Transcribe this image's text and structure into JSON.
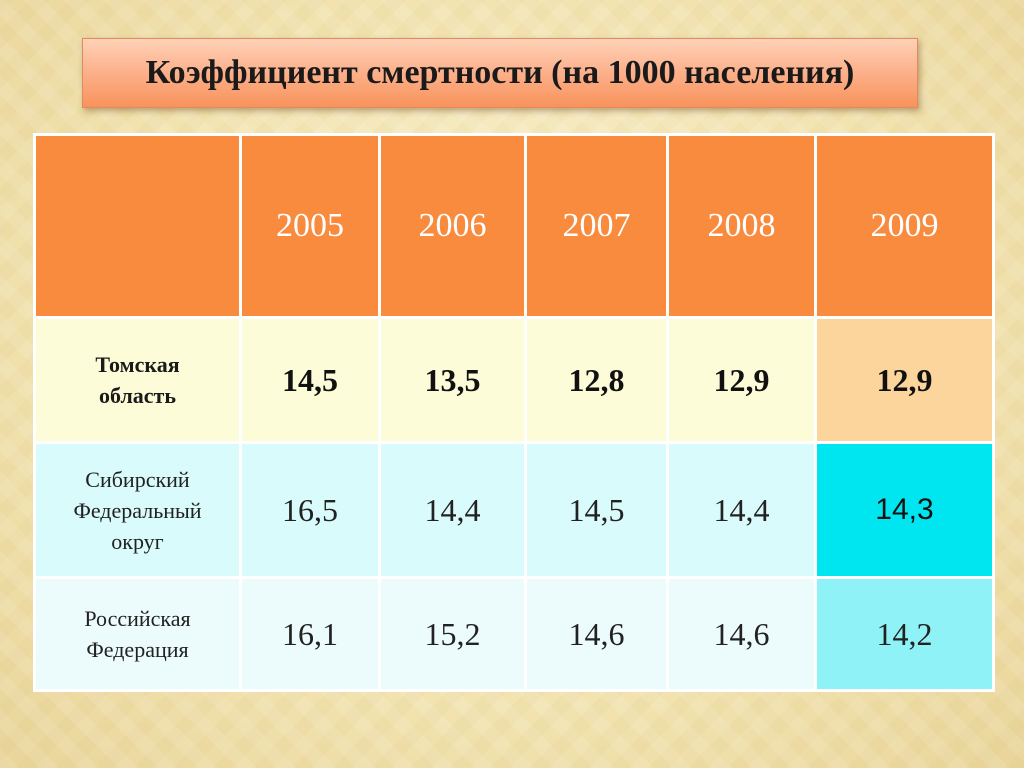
{
  "title": "Коэффициент смертности (на 1000 населения)",
  "table": {
    "years": [
      "2005",
      "2006",
      "2007",
      "2008",
      "2009"
    ],
    "rows": [
      {
        "label": "Томская область",
        "values": [
          "14,5",
          "13,5",
          "12,8",
          "12,9",
          "12,9"
        ]
      },
      {
        "label": "Сибирский Федеральный округ",
        "values": [
          "16,5",
          "14,4",
          "14,5",
          "14,4",
          "14,3"
        ]
      },
      {
        "label": "Российская Федерация",
        "values": [
          "16,1",
          "15,2",
          "14,6",
          "14,6",
          "14,2"
        ]
      }
    ]
  },
  "colors": {
    "header": "#f98b3e",
    "tomsk_row": "#fdfcd9",
    "tomsk_highlight": "#fbd59c",
    "sibir_row": "#d9fbfb",
    "sibir_highlight": "#00e6f0",
    "russia_row": "#ecfcfc",
    "russia_highlight": "#8ff2f6"
  }
}
